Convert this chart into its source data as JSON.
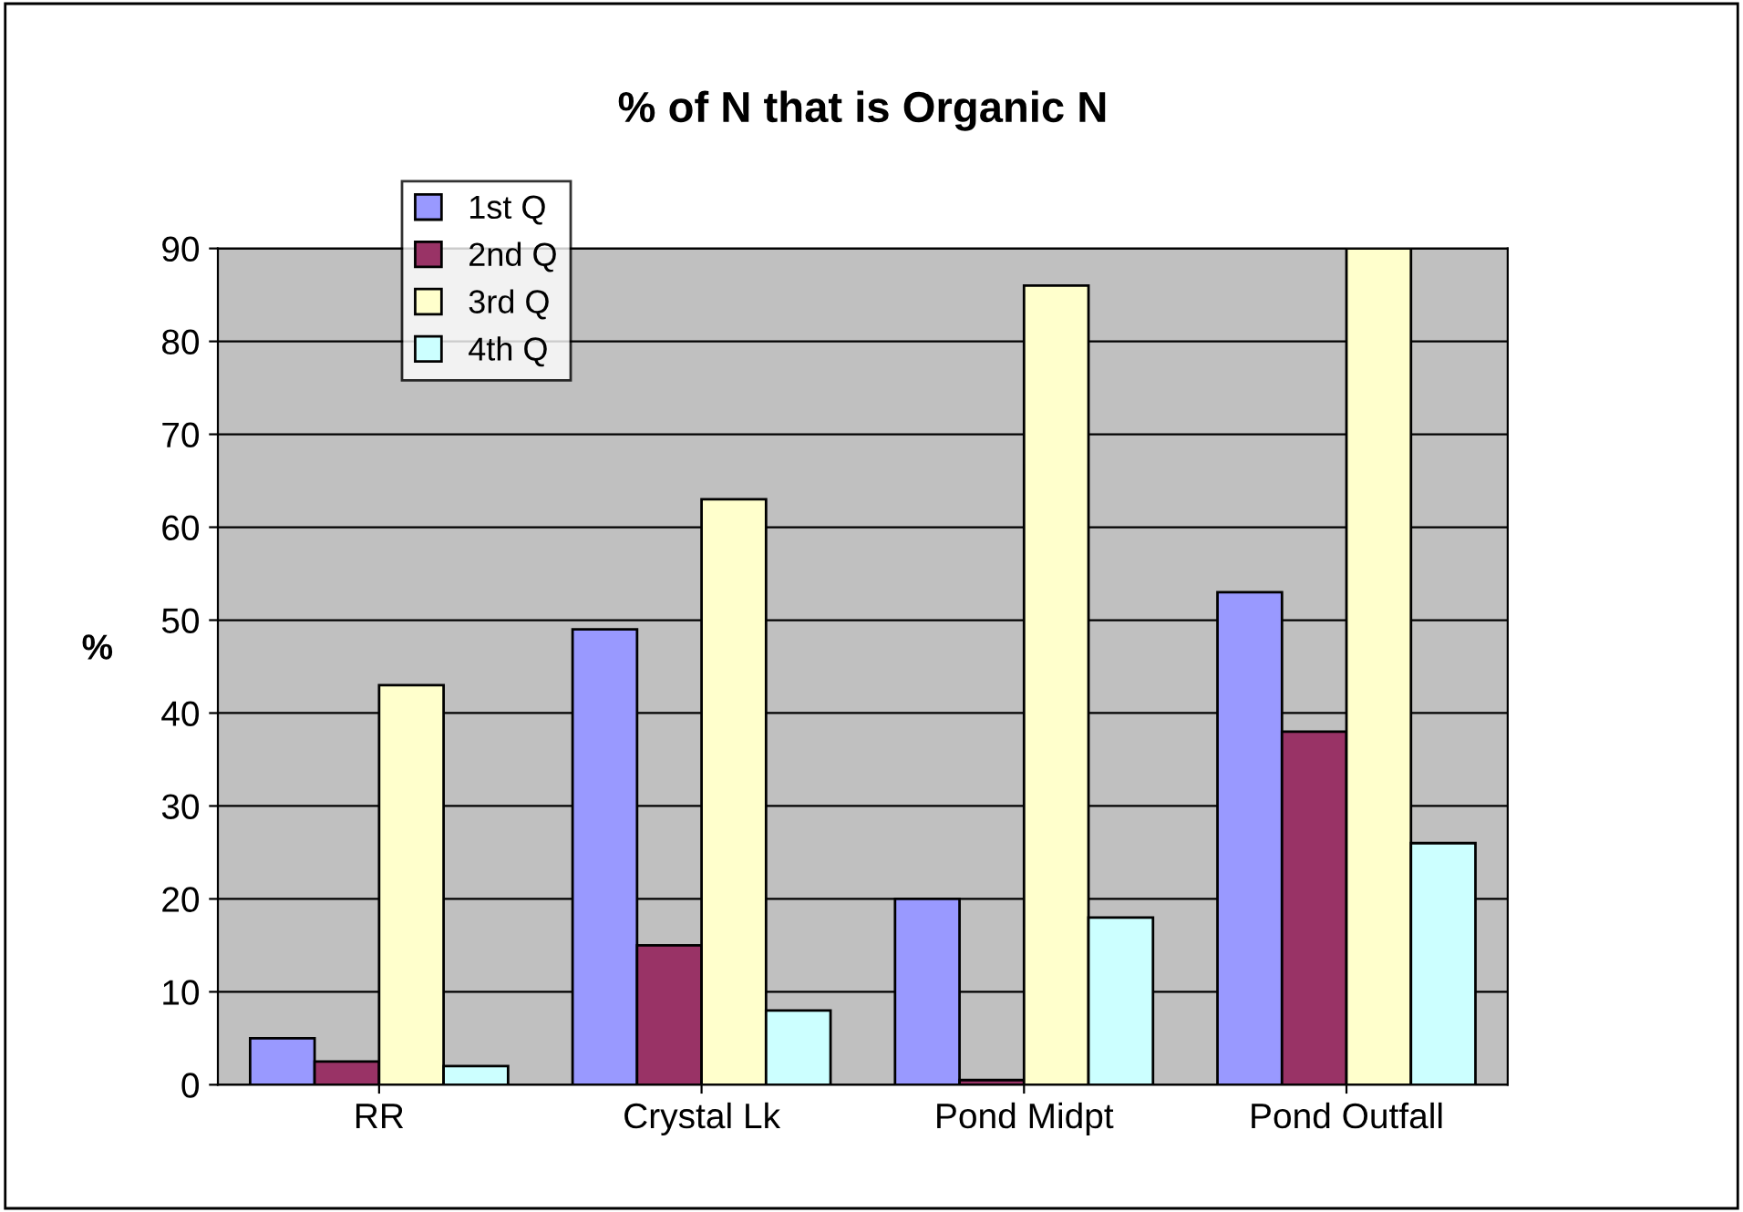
{
  "chart_data": {
    "type": "bar",
    "title": "% of N that is Organic N",
    "ylabel": "%",
    "categories": [
      "RR",
      "Crystal Lk",
      "Pond Midpt",
      "Pond Outfall"
    ],
    "series": [
      {
        "name": "1st Q",
        "color": "#9999ff",
        "values": [
          5,
          49,
          20,
          53
        ]
      },
      {
        "name": "2nd Q",
        "color": "#993366",
        "values": [
          2.5,
          15,
          0.5,
          38
        ]
      },
      {
        "name": "3rd Q",
        "color": "#ffffcc",
        "values": [
          43,
          63,
          86,
          90
        ]
      },
      {
        "name": "4th Q",
        "color": "#ccffff",
        "values": [
          2,
          8,
          18,
          26
        ]
      }
    ],
    "ylim": [
      0,
      90
    ],
    "yticks": [
      0,
      10,
      20,
      30,
      40,
      50,
      60,
      70,
      80,
      90
    ],
    "grid": "y",
    "legend": "top left"
  }
}
